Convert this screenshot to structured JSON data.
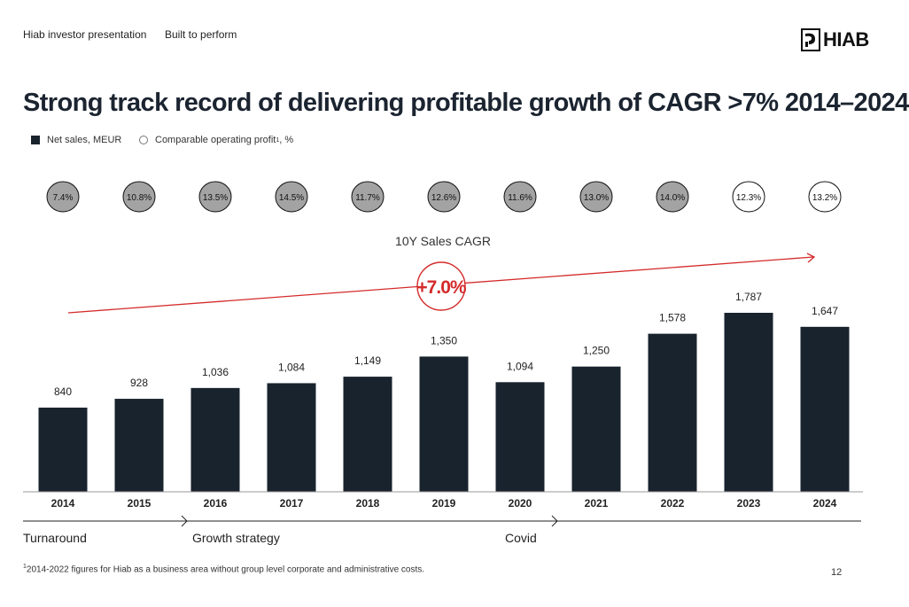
{
  "header": {
    "left": "Hiab investor presentation",
    "mid": "Built to perform",
    "logo_text": "HIAB"
  },
  "title": "Strong track record of delivering profitable growth of CAGR >7% 2014–2024",
  "legend": {
    "net_sales": "Net sales, MEUR",
    "profit": "Comparable operating profit",
    "profit_sup": "1",
    "profit_suffix": ", %"
  },
  "cagr": {
    "label": "10Y Sales CAGR",
    "value": "+7.0%"
  },
  "phases": {
    "turnaround": "Turnaround",
    "growth": "Growth strategy",
    "covid": "Covid"
  },
  "footnote": {
    "sup": "1",
    "text": "2014-2022 figures for Hiab as a business area without group level corporate and administrative costs."
  },
  "page_number": "12",
  "colors": {
    "bar": "#19232e",
    "accent_red": "#d42b2b",
    "pill_filled": "#a3a3a3",
    "pill_border": "#111111"
  },
  "chart_data": {
    "type": "bar",
    "categories": [
      "2014",
      "2015",
      "2016",
      "2017",
      "2018",
      "2019",
      "2020",
      "2021",
      "2022",
      "2023",
      "2024"
    ],
    "series": [
      {
        "name": "Net sales, MEUR",
        "values": [
          840,
          928,
          1036,
          1084,
          1149,
          1350,
          1094,
          1250,
          1578,
          1787,
          1647
        ]
      }
    ],
    "value_labels": [
      "840",
      "928",
      "1,036",
      "1,084",
      "1,149",
      "1,350",
      "1,094",
      "1,250",
      "1,578",
      "1,787",
      "1,647"
    ],
    "margins": {
      "name": "Comparable operating profit, %",
      "values": [
        7.4,
        10.8,
        13.5,
        14.5,
        11.7,
        12.6,
        11.6,
        13.0,
        14.0,
        12.3,
        13.2
      ],
      "labels": [
        "7.4%",
        "10.8%",
        "13.5%",
        "14.5%",
        "11.7%",
        "12.6%",
        "11.6%",
        "13.0%",
        "14.0%",
        "12.3%",
        "13.2%"
      ],
      "filled": [
        true,
        true,
        true,
        true,
        true,
        true,
        true,
        true,
        true,
        false,
        false
      ]
    },
    "ylim": [
      0,
      2000
    ],
    "grid": false
  }
}
